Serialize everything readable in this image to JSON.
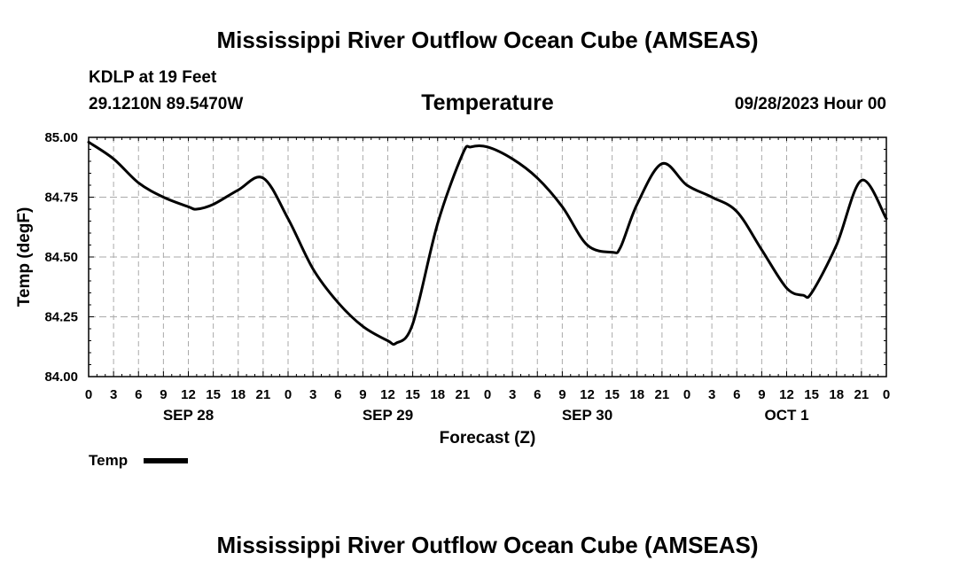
{
  "header": {
    "title": "Mississippi River Outflow Ocean Cube (AMSEAS)",
    "station": "KDLP at 19 Feet",
    "coords": "29.1210N  89.5470W",
    "subtitle": "Temperature",
    "datetime": "09/28/2023 Hour 00"
  },
  "footer": {
    "title": "Mississippi River Outflow Ocean Cube (AMSEAS)"
  },
  "legend": {
    "label": "Temp",
    "color": "#000000"
  },
  "chart_data": {
    "type": "line",
    "title": "Temperature",
    "xlabel": "Forecast (Z)",
    "ylabel": "Temp (degF)",
    "xlim": [
      0,
      96
    ],
    "ylim": [
      84.0,
      85.0
    ],
    "yticks": [
      "84.00",
      "84.25",
      "84.50",
      "84.75",
      "85.00"
    ],
    "xtick_hours": [
      0,
      3,
      6,
      9,
      12,
      15,
      18,
      21,
      24,
      27,
      30,
      33,
      36,
      39,
      42,
      45,
      48,
      51,
      54,
      57,
      60,
      63,
      66,
      69,
      72,
      75,
      78,
      81,
      84,
      87,
      90,
      93,
      96
    ],
    "xtick_labels": [
      "0",
      "3",
      "6",
      "9",
      "12",
      "15",
      "18",
      "21",
      "0",
      "3",
      "6",
      "9",
      "12",
      "15",
      "18",
      "21",
      "0",
      "3",
      "6",
      "9",
      "12",
      "15",
      "18",
      "21",
      "0",
      "3",
      "6",
      "9",
      "12",
      "15",
      "18",
      "21",
      "0"
    ],
    "day_labels": [
      {
        "hour": 12,
        "label": "SEP 28"
      },
      {
        "hour": 36,
        "label": "SEP 29"
      },
      {
        "hour": 60,
        "label": "SEP 30"
      },
      {
        "hour": 84,
        "label": "OCT 1"
      }
    ],
    "grid": true,
    "series": [
      {
        "name": "Temp",
        "x": [
          0,
          3,
          6,
          9,
          12,
          13,
          15,
          18,
          21,
          24,
          27,
          30,
          33,
          36,
          37,
          39,
          42,
          45,
          46,
          48,
          51,
          54,
          57,
          60,
          63,
          64,
          66,
          69,
          72,
          75,
          78,
          81,
          84,
          86,
          87,
          90,
          93,
          96
        ],
        "y": [
          84.98,
          84.91,
          84.81,
          84.75,
          84.71,
          84.7,
          84.72,
          84.78,
          84.83,
          84.66,
          84.45,
          84.31,
          84.21,
          84.15,
          84.14,
          84.22,
          84.64,
          84.93,
          84.96,
          84.96,
          84.91,
          84.83,
          84.71,
          84.55,
          84.52,
          84.54,
          84.72,
          84.89,
          84.8,
          84.75,
          84.69,
          84.53,
          84.37,
          84.34,
          84.35,
          84.55,
          84.82,
          84.66
        ]
      }
    ]
  }
}
